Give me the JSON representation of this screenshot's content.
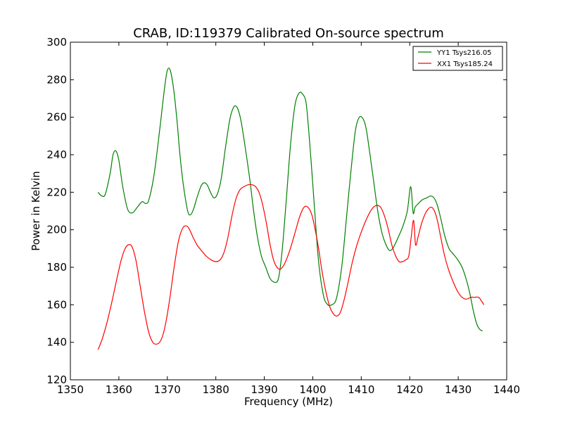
{
  "chart_data": {
    "type": "line",
    "title": "CRAB, ID:119379 Calibrated On-source spectrum",
    "xlabel": "Frequency (MHz)",
    "ylabel": "Power in Kelvin",
    "xlim": [
      1350,
      1440
    ],
    "ylim": [
      120,
      300
    ],
    "xticks": [
      1350,
      1360,
      1370,
      1380,
      1390,
      1400,
      1410,
      1420,
      1430,
      1440
    ],
    "yticks": [
      120,
      140,
      160,
      180,
      200,
      220,
      240,
      260,
      280,
      300
    ],
    "grid": false,
    "legend_position": "top-right",
    "series": [
      {
        "name": "YY1 Tsys216.05",
        "color": "#008000",
        "x": [
          1355.7,
          1356.5,
          1357.2,
          1358.2,
          1358.8,
          1359.4,
          1360.0,
          1360.8,
          1361.8,
          1362.8,
          1363.8,
          1364.8,
          1365.5,
          1366.2,
          1367.3,
          1368.5,
          1369.4,
          1370.0,
          1370.6,
          1371.3,
          1372.0,
          1372.6,
          1373.3,
          1374.2,
          1374.8,
          1375.4,
          1376.1,
          1376.9,
          1377.5,
          1378.2,
          1378.9,
          1379.6,
          1380.3,
          1381.1,
          1382.0,
          1382.9,
          1383.6,
          1384.1,
          1384.6,
          1385.2,
          1386.0,
          1387.0,
          1387.8,
          1388.6,
          1389.4,
          1390.3,
          1391.2,
          1392.1,
          1392.8,
          1393.3,
          1393.9,
          1394.6,
          1395.4,
          1396.3,
          1397.2,
          1398.0,
          1398.6,
          1399.1,
          1399.7,
          1400.4,
          1401.2,
          1402.2,
          1403.1,
          1403.9,
          1404.7,
          1405.4,
          1406.1,
          1406.9,
          1407.9,
          1408.8,
          1409.6,
          1410.4,
          1411.0,
          1411.7,
          1412.5,
          1413.4,
          1414.3,
          1415.1,
          1415.8,
          1416.5,
          1417.1,
          1417.8,
          1418.6,
          1419.5,
          1420.2,
          1420.7,
          1421.1,
          1421.8,
          1422.6,
          1423.5,
          1424.3,
          1425.0,
          1425.7,
          1426.4,
          1427.2,
          1428.1,
          1429.0,
          1429.9,
          1430.8,
          1431.6,
          1432.4,
          1433.1,
          1433.8,
          1434.4,
          1435.0
        ],
        "y": [
          220,
          218,
          219,
          230,
          240,
          242,
          237,
          223,
          211,
          209,
          212,
          215,
          214,
          216,
          230,
          255,
          275,
          285,
          285,
          275,
          258,
          240,
          224,
          210,
          208,
          211,
          217,
          223,
          225,
          224,
          220,
          217,
          219,
          227,
          244,
          259,
          265,
          266,
          264,
          258,
          245,
          227,
          210,
          196,
          186,
          180,
          174,
          172,
          173,
          180,
          195,
          218,
          245,
          266,
          273,
          272,
          268,
          255,
          235,
          210,
          183,
          165,
          160,
          160,
          162,
          170,
          183,
          205,
          232,
          253,
          260,
          259,
          254,
          242,
          227,
          210,
          198,
          192,
          189,
          190,
          193,
          197,
          202,
          210,
          223,
          209,
          212,
          214,
          216,
          217,
          218,
          217,
          213,
          206,
          197,
          190,
          187,
          184,
          180,
          174,
          166,
          157,
          150,
          147,
          146
        ]
      },
      {
        "name": "XX1 Tsys185.24",
        "color": "#ff0000",
        "x": [
          1355.7,
          1356.6,
          1357.6,
          1358.6,
          1359.6,
          1360.5,
          1361.3,
          1362.0,
          1362.7,
          1363.5,
          1364.4,
          1365.3,
          1366.2,
          1367.0,
          1367.7,
          1368.4,
          1369.1,
          1369.8,
          1370.6,
          1371.4,
          1372.3,
          1373.2,
          1374.0,
          1374.6,
          1375.3,
          1376.1,
          1377.0,
          1378.0,
          1379.0,
          1380.0,
          1380.9,
          1381.7,
          1382.5,
          1383.3,
          1384.1,
          1384.9,
          1385.8,
          1386.7,
          1387.5,
          1388.2,
          1388.9,
          1389.6,
          1390.4,
          1391.2,
          1391.9,
          1392.6,
          1393.3,
          1394.0,
          1394.7,
          1395.5,
          1396.4,
          1397.3,
          1398.2,
          1399.0,
          1399.8,
          1400.5,
          1401.2,
          1401.9,
          1402.7,
          1403.5,
          1404.3,
          1405.0,
          1405.7,
          1406.4,
          1407.2,
          1408.1,
          1409.0,
          1409.9,
          1410.8,
          1411.7,
          1412.5,
          1413.3,
          1414.0,
          1414.7,
          1415.5,
          1416.3,
          1417.1,
          1417.8,
          1418.5,
          1419.2,
          1419.8,
          1420.3,
          1420.8,
          1421.2,
          1421.7,
          1422.4,
          1423.1,
          1423.8,
          1424.5,
          1425.1,
          1425.7,
          1426.4,
          1427.2,
          1428.1,
          1429.0,
          1429.9,
          1430.8,
          1431.7,
          1432.6,
          1433.4,
          1434.2,
          1434.8,
          1435.3
        ],
        "y": [
          136,
          142,
          151,
          162,
          174,
          184,
          190,
          192,
          191,
          184,
          170,
          156,
          145,
          140,
          139,
          140,
          144,
          152,
          165,
          180,
          194,
          201,
          202,
          200,
          196,
          192,
          189,
          186,
          184,
          183,
          184,
          188,
          196,
          207,
          216,
          221,
          223,
          224,
          224,
          223,
          220,
          214,
          204,
          192,
          184,
          180,
          179,
          181,
          185,
          191,
          199,
          207,
          212,
          212,
          208,
          200,
          190,
          178,
          167,
          159,
          155,
          154,
          156,
          162,
          171,
          182,
          191,
          198,
          204,
          209,
          212,
          213,
          212,
          208,
          201,
          192,
          186,
          183,
          183,
          184,
          186,
          196,
          205,
          192,
          196,
          203,
          208,
          211,
          212,
          210,
          205,
          196,
          186,
          178,
          172,
          167,
          164,
          163,
          164,
          164,
          164,
          162,
          160
        ]
      }
    ]
  }
}
